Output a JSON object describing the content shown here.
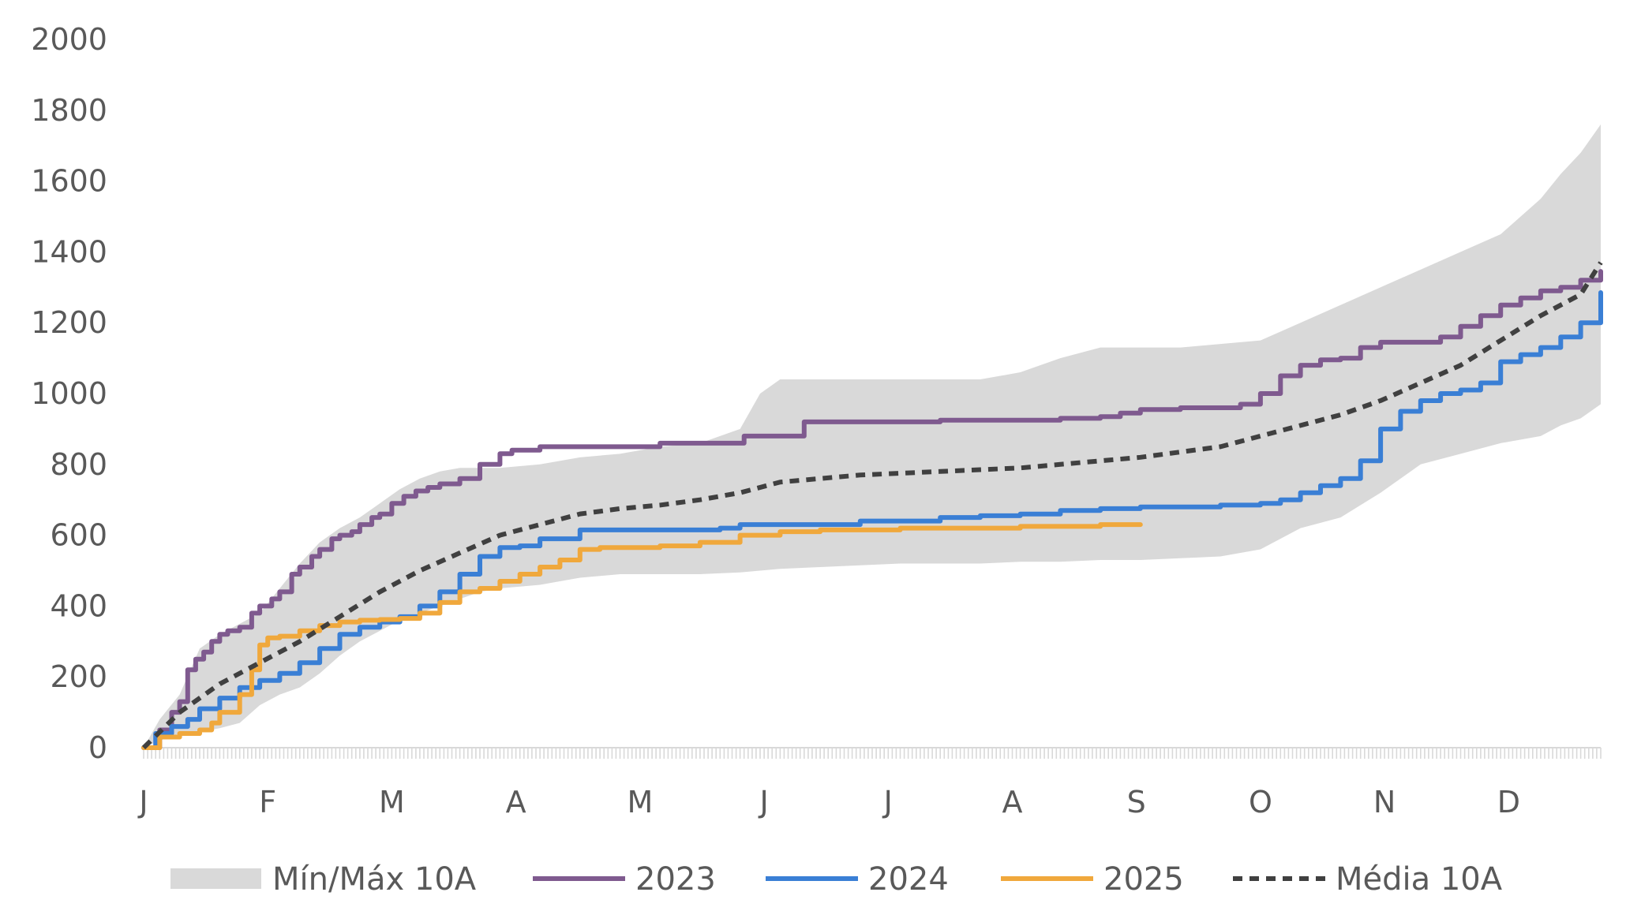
{
  "chart_data": {
    "type": "line",
    "title": "",
    "xlabel": "",
    "ylabel": "",
    "ylim": [
      0,
      2000
    ],
    "yticks": [
      0,
      200,
      400,
      600,
      800,
      1000,
      1200,
      1400,
      1600,
      1800,
      2000
    ],
    "xlim": [
      1,
      365
    ],
    "month_ticks": [
      {
        "label": "J",
        "day": 1
      },
      {
        "label": "F",
        "day": 32
      },
      {
        "label": "M",
        "day": 63
      },
      {
        "label": "A",
        "day": 94
      },
      {
        "label": "M",
        "day": 125
      },
      {
        "label": "J",
        "day": 156
      },
      {
        "label": "J",
        "day": 187
      },
      {
        "label": "A",
        "day": 218
      },
      {
        "label": "S",
        "day": 249
      },
      {
        "label": "O",
        "day": 280
      },
      {
        "label": "N",
        "day": 311
      },
      {
        "label": "D",
        "day": 342
      }
    ],
    "grid": false,
    "legend_position": "bottom",
    "band": {
      "name": "Mín/Máx 10A",
      "color": "#d9d9d9",
      "x": [
        1,
        5,
        10,
        15,
        20,
        25,
        30,
        35,
        40,
        45,
        50,
        55,
        60,
        65,
        70,
        75,
        80,
        85,
        90,
        95,
        100,
        110,
        120,
        130,
        140,
        150,
        155,
        160,
        170,
        180,
        190,
        200,
        210,
        220,
        230,
        240,
        250,
        260,
        270,
        280,
        290,
        300,
        310,
        320,
        330,
        340,
        350,
        355,
        360,
        365
      ],
      "lower": [
        0,
        20,
        40,
        45,
        55,
        70,
        120,
        150,
        170,
        210,
        260,
        300,
        330,
        360,
        380,
        400,
        420,
        440,
        450,
        455,
        460,
        480,
        490,
        490,
        490,
        495,
        500,
        505,
        510,
        515,
        520,
        520,
        520,
        525,
        525,
        530,
        530,
        535,
        540,
        560,
        620,
        650,
        720,
        800,
        830,
        860,
        880,
        910,
        930,
        970
      ],
      "upper": [
        0,
        80,
        150,
        280,
        320,
        350,
        380,
        450,
        520,
        580,
        620,
        650,
        690,
        730,
        760,
        780,
        790,
        790,
        790,
        795,
        800,
        820,
        830,
        850,
        860,
        900,
        1000,
        1040,
        1040,
        1040,
        1040,
        1040,
        1040,
        1060,
        1100,
        1130,
        1130,
        1130,
        1140,
        1150,
        1200,
        1250,
        1300,
        1350,
        1400,
        1450,
        1550,
        1620,
        1680,
        1760
      ]
    },
    "series": [
      {
        "name": "2023",
        "color": "#7f5a8f",
        "style": "solid",
        "x": [
          1,
          5,
          8,
          10,
          12,
          14,
          16,
          18,
          20,
          22,
          25,
          28,
          30,
          33,
          35,
          38,
          40,
          43,
          45,
          48,
          50,
          53,
          55,
          58,
          60,
          63,
          66,
          69,
          72,
          75,
          80,
          85,
          90,
          93,
          96,
          100,
          105,
          110,
          120,
          130,
          140,
          150,
          151,
          160,
          166,
          170,
          180,
          190,
          200,
          210,
          220,
          230,
          240,
          245,
          250,
          260,
          270,
          275,
          280,
          285,
          290,
          295,
          300,
          305,
          310,
          320,
          325,
          330,
          335,
          340,
          345,
          350,
          355,
          360,
          365
        ],
        "y": [
          0,
          50,
          100,
          130,
          220,
          250,
          270,
          300,
          320,
          330,
          340,
          380,
          400,
          420,
          440,
          490,
          510,
          540,
          560,
          590,
          600,
          610,
          630,
          650,
          660,
          690,
          710,
          725,
          735,
          745,
          760,
          800,
          830,
          840,
          840,
          850,
          850,
          850,
          850,
          860,
          860,
          860,
          880,
          880,
          920,
          920,
          920,
          920,
          925,
          925,
          925,
          930,
          935,
          945,
          955,
          960,
          960,
          970,
          1000,
          1050,
          1080,
          1095,
          1100,
          1130,
          1145,
          1145,
          1160,
          1190,
          1220,
          1250,
          1270,
          1290,
          1300,
          1320,
          1345
        ]
      },
      {
        "name": "2024",
        "color": "#3a7fd5",
        "style": "solid",
        "x": [
          1,
          4,
          8,
          12,
          15,
          20,
          25,
          30,
          35,
          40,
          45,
          50,
          55,
          60,
          65,
          70,
          75,
          80,
          85,
          90,
          95,
          100,
          110,
          120,
          130,
          140,
          145,
          150,
          160,
          170,
          180,
          190,
          200,
          210,
          220,
          230,
          240,
          250,
          260,
          270,
          280,
          285,
          290,
          295,
          300,
          305,
          310,
          315,
          320,
          325,
          330,
          335,
          340,
          345,
          350,
          355,
          360,
          365
        ],
        "y": [
          0,
          40,
          60,
          80,
          110,
          140,
          170,
          190,
          210,
          240,
          280,
          320,
          340,
          355,
          370,
          400,
          440,
          490,
          540,
          565,
          570,
          590,
          615,
          615,
          615,
          615,
          620,
          630,
          630,
          630,
          640,
          640,
          650,
          655,
          660,
          670,
          675,
          680,
          680,
          685,
          690,
          700,
          720,
          740,
          760,
          810,
          900,
          950,
          980,
          1000,
          1010,
          1030,
          1090,
          1110,
          1130,
          1160,
          1200,
          1285
        ]
      },
      {
        "name": "2025",
        "color": "#f0a83c",
        "style": "solid",
        "x": [
          1,
          5,
          10,
          15,
          18,
          20,
          25,
          28,
          30,
          32,
          35,
          40,
          45,
          50,
          55,
          60,
          65,
          70,
          75,
          80,
          85,
          90,
          95,
          100,
          105,
          110,
          115,
          120,
          130,
          140,
          150,
          160,
          170,
          180,
          190,
          200,
          210,
          220,
          230,
          240,
          250
        ],
        "y": [
          0,
          30,
          40,
          50,
          70,
          100,
          150,
          220,
          290,
          310,
          315,
          330,
          345,
          355,
          360,
          362,
          365,
          380,
          410,
          440,
          450,
          470,
          490,
          510,
          530,
          560,
          565,
          565,
          570,
          580,
          600,
          610,
          615,
          615,
          620,
          620,
          620,
          625,
          625,
          630,
          630
        ]
      },
      {
        "name": "Média 10A",
        "color": "#404040",
        "style": "dashed",
        "x": [
          1,
          10,
          20,
          30,
          40,
          50,
          60,
          70,
          80,
          90,
          100,
          110,
          120,
          130,
          140,
          150,
          160,
          170,
          180,
          190,
          200,
          210,
          220,
          230,
          240,
          250,
          260,
          270,
          280,
          290,
          300,
          310,
          320,
          330,
          340,
          350,
          360,
          365
        ],
        "y": [
          0,
          100,
          180,
          240,
          300,
          370,
          440,
          500,
          550,
          600,
          630,
          660,
          675,
          685,
          700,
          720,
          750,
          760,
          770,
          775,
          780,
          785,
          790,
          800,
          810,
          820,
          835,
          850,
          880,
          910,
          940,
          980,
          1030,
          1080,
          1150,
          1220,
          1280,
          1370
        ]
      }
    ]
  }
}
